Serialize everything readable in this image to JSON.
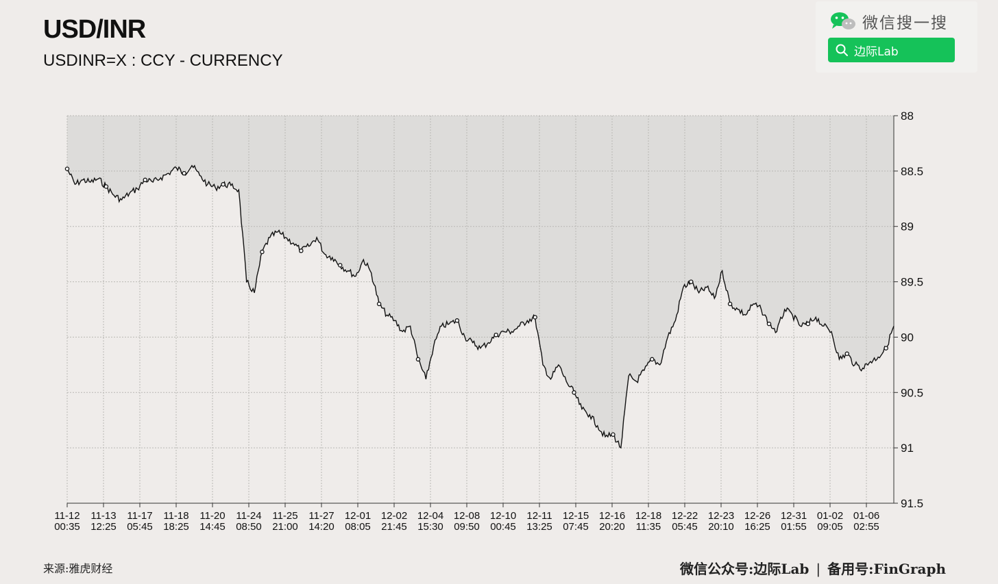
{
  "header": {
    "title": "USD/INR",
    "subtitle": "USDINR=X : CCY - CURRENCY"
  },
  "wechat": {
    "label": "微信搜一搜",
    "search_text": "边际Lab",
    "accent": "#15c259"
  },
  "footer": {
    "source": "来源:雅虎财经",
    "account_label": "微信公众号:",
    "account_name": "边际Lab",
    "divider": "|",
    "backup_label": "备用号:",
    "backup_name": "FinGraph"
  },
  "chart_data": {
    "type": "line",
    "title": "USD/INR",
    "ylim": [
      91.5,
      88
    ],
    "y_inverted": true,
    "yticks": [
      "88",
      "88.5",
      "89",
      "89.5",
      "90",
      "90.5",
      "91",
      "91.5"
    ],
    "ytick_values": [
      88,
      88.5,
      89,
      89.5,
      90,
      90.5,
      91,
      91.5
    ],
    "xticks": [
      [
        "11-12",
        "00:35"
      ],
      [
        "11-13",
        "12:25"
      ],
      [
        "11-17",
        "05:45"
      ],
      [
        "11-18",
        "18:25"
      ],
      [
        "11-20",
        "14:45"
      ],
      [
        "11-24",
        "08:50"
      ],
      [
        "11-25",
        "21:00"
      ],
      [
        "11-27",
        "14:20"
      ],
      [
        "12-01",
        "08:05"
      ],
      [
        "12-02",
        "21:45"
      ],
      [
        "12-04",
        "15:30"
      ],
      [
        "12-08",
        "09:50"
      ],
      [
        "12-10",
        "00:45"
      ],
      [
        "12-11",
        "13:25"
      ],
      [
        "12-15",
        "07:45"
      ],
      [
        "12-16",
        "20:20"
      ],
      [
        "12-18",
        "11:35"
      ],
      [
        "12-22",
        "05:45"
      ],
      [
        "12-23",
        "20:10"
      ],
      [
        "12-26",
        "16:25"
      ],
      [
        "12-31",
        "01:55"
      ],
      [
        "01-02",
        "09:05"
      ],
      [
        "01-06",
        "02:55"
      ]
    ],
    "grid": true,
    "area_fill": "#dddcda",
    "line_color": "#111111",
    "series": [
      {
        "values": [
          88.48,
          88.62,
          88.58,
          88.6,
          88.57,
          88.64,
          88.72,
          88.76,
          88.7,
          88.66,
          88.58,
          88.6,
          88.56,
          88.52,
          88.47,
          88.52,
          88.45,
          88.54,
          88.62,
          88.65,
          88.62,
          88.63,
          88.67,
          89.5,
          89.6,
          89.23,
          89.1,
          89.05,
          89.1,
          89.15,
          89.22,
          89.18,
          89.1,
          89.25,
          89.28,
          89.35,
          89.4,
          89.45,
          89.3,
          89.42,
          89.7,
          89.8,
          89.85,
          89.95,
          89.9,
          90.2,
          90.38,
          90.08,
          89.9,
          89.88,
          89.85,
          90.0,
          90.05,
          90.1,
          90.05,
          89.98,
          89.95,
          89.95,
          89.9,
          89.85,
          89.82,
          90.25,
          90.38,
          90.25,
          90.4,
          90.5,
          90.65,
          90.7,
          90.8,
          90.9,
          90.88,
          91.0,
          90.35,
          90.4,
          90.3,
          90.2,
          90.25,
          90.0,
          89.85,
          89.55,
          89.5,
          89.6,
          89.55,
          89.65,
          89.4,
          89.7,
          89.75,
          89.8,
          89.7,
          89.75,
          89.88,
          89.95,
          89.75,
          89.8,
          89.9,
          89.88,
          89.82,
          89.9,
          89.95,
          90.2,
          90.15,
          90.25,
          90.28,
          90.22,
          90.18,
          90.1,
          89.9
        ]
      }
    ],
    "markers_visible": true
  }
}
